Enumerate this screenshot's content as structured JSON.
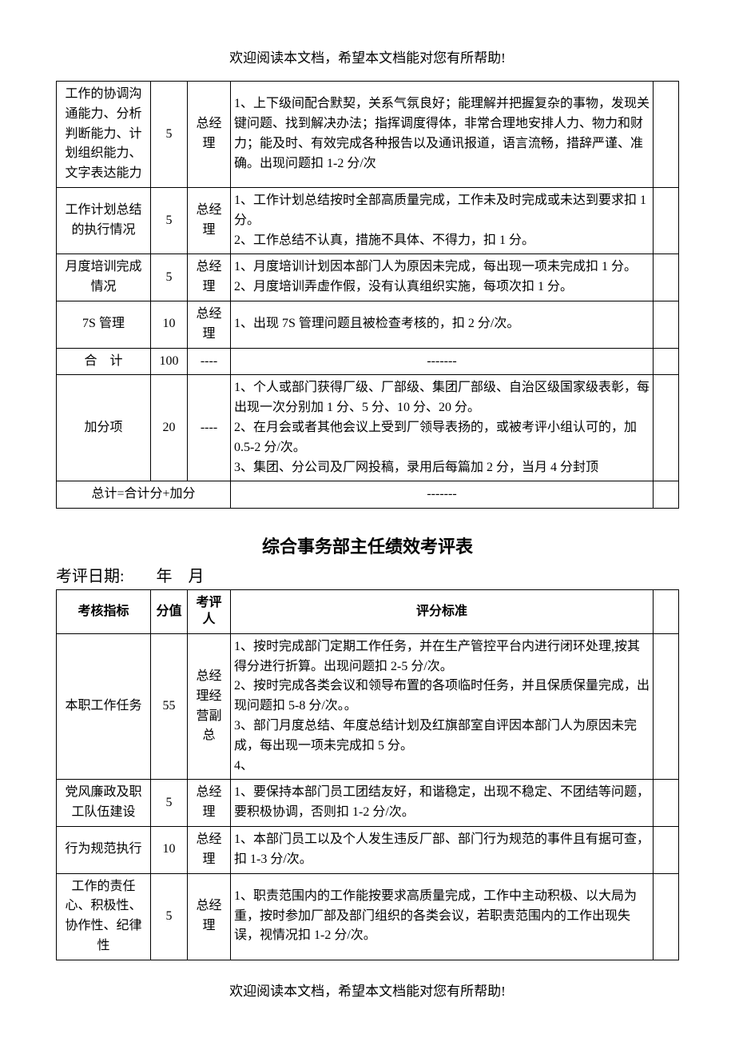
{
  "header_note": "欢迎阅读本文档，希望本文档能对您有所帮助!",
  "footer_note": "欢迎阅读本文档，希望本文档能对您有所帮助!",
  "table1": {
    "rows": [
      {
        "indicator": "工作的协调沟通能力、分析判断能力、计划组织能力、文字表达能力",
        "score": "5",
        "reviewer": "总经理",
        "criteria": "1、上下级间配合默契，关系气氛良好；能理解并把握复杂的事物，发现关键问题、找到解决办法；指挥调度得体，非常合理地安排人力、物力和财力；能及时、有效完成各种报告以及通讯报道，语言流畅，措辞严谨、准确。出现问题扣 1-2 分/次"
      },
      {
        "indicator": "工作计划总结的执行情况",
        "score": "5",
        "reviewer": "总经理",
        "criteria": "1、工作计划总结按时全部高质量完成，工作未及时完成或未达到要求扣 1 分。\n2、工作总结不认真，措施不具体、不得力，扣 1 分。",
        "tall": true
      },
      {
        "indicator": "月度培训完成情况",
        "score": "5",
        "reviewer": "总经理",
        "criteria": "1、月度培训计划因本部门人为原因未完成，每出现一项未完成扣 1 分。\n2、月度培训弄虚作假，没有认真组织实施，每项次扣 1 分。"
      },
      {
        "indicator": "7S 管理",
        "score": "10",
        "reviewer": "总经理",
        "criteria": "1、出现 7S 管理问题且被检查考核的，扣 2 分/次。"
      },
      {
        "indicator": "合　计",
        "score": "100",
        "reviewer": "----",
        "criteria": "-------",
        "center": true
      },
      {
        "indicator": "加分项",
        "score": "20",
        "reviewer": "----",
        "criteria": "1、个人或部门获得厂级、厂部级、集团厂部级、自治区级国家级表彰，每出现一次分别加 1 分、5 分、10 分、20 分。\n2、在月会或者其他会议上受到厂领导表扬的，或被考评小组认可的，加 0.5-2 分/次。\n3、集团、分公司及厂网投稿，录用后每篇加 2 分，当月 4 分封顶"
      }
    ],
    "total_label": "总计=合计分+加分",
    "total_dash": "-------"
  },
  "section2": {
    "title": "综合事务部主任绩效考评表",
    "date_label": "考评日期:　　年　月",
    "headers": {
      "c1": "考核指标",
      "c2": "分值",
      "c3": "考评人",
      "c4": "评分标准"
    },
    "rows": [
      {
        "indicator": "本职工作任务",
        "score": "55",
        "reviewer": "总经理经营副总",
        "criteria": "1、按时完成部门定期工作任务，并在生产管控平台内进行闭环处理,按其得分进行折算。出现问题扣 2-5 分/次。\n2、按时完成各类会议和领导布置的各项临时任务，并且保质保量完成，出现问题扣 5-8 分/次。。\n3、部门月度总结、年度总结计划及红旗部室自评因本部门人为原因未完成，每出现一项未完成扣 5 分。\n4、"
      },
      {
        "indicator": "党风廉政及职工队伍建设",
        "score": "5",
        "reviewer": "总经理",
        "criteria": "1、要保持本部门员工团结友好，和谐稳定，出现不稳定、不团结等问题，要积极协调，否则扣 1-2 分/次。"
      },
      {
        "indicator": "行为规范执行",
        "score": "10",
        "reviewer": "总经理",
        "criteria": "1、本部门员工以及个人发生违反厂部、部门行为规范的事件且有据可查，扣 1-3 分/次。"
      },
      {
        "indicator": "工作的责任心、积极性、协作性、纪律性",
        "score": "5",
        "reviewer": "总经理",
        "criteria": "1、职责范围内的工作能按要求高质量完成，工作中主动积极、以大局为重，按时参加厂部及部门组织的各类会议，若职责范围内的工作出现失误，视情况扣 1-2 分/次。"
      }
    ]
  }
}
